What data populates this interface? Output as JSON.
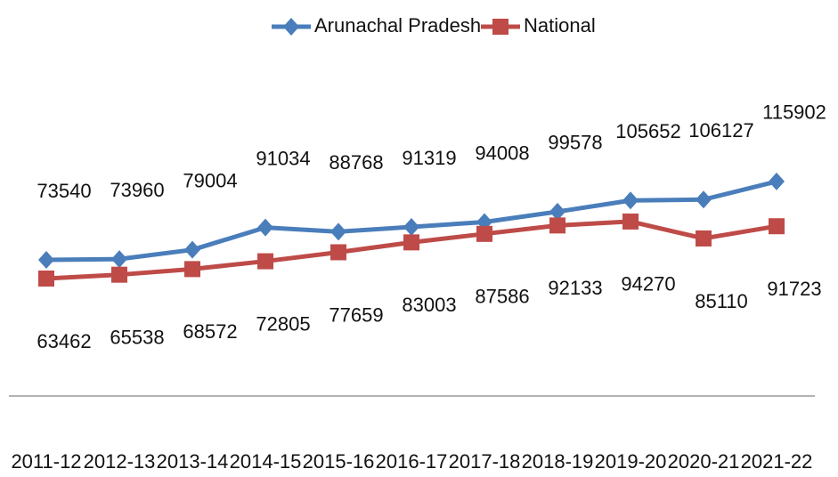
{
  "chart_data": {
    "type": "line",
    "categories": [
      "2011-12",
      "2012-13",
      "2013-14",
      "2014-15",
      "2015-16",
      "2016-17",
      "2017-18",
      "2018-19",
      "2019-20",
      "2020-21",
      "2021-22"
    ],
    "series": [
      {
        "name": "Arunachal Pradesh",
        "color": "#4a7ebb",
        "marker": "diamond",
        "values": [
          73540,
          73960,
          79004,
          91034,
          88768,
          91319,
          94008,
          99578,
          105652,
          106127,
          115902
        ]
      },
      {
        "name": "National",
        "color": "#be4b48",
        "marker": "square",
        "values": [
          63462,
          65538,
          68572,
          72805,
          77659,
          83003,
          87586,
          92133,
          94270,
          85110,
          91723
        ]
      }
    ],
    "ylim": [
      0,
      200000
    ],
    "legend": "top"
  }
}
